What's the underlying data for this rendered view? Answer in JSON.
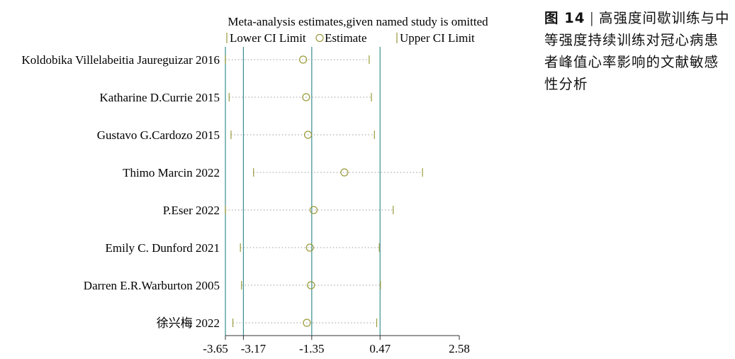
{
  "caption": {
    "figure_label": "图 14",
    "text": "高强度间歇训练与中等强度持续训练对冠心病患者峰值心率影响的文献敏感性分析"
  },
  "chart_data": {
    "type": "scatter",
    "title": "Meta-analysis estimates,given named study is omitted",
    "legend": {
      "lower": "Lower CI Limit",
      "estimate": "Estimate",
      "upper": "Upper CI Limit",
      "placement": "top"
    },
    "xlim": [
      -3.65,
      2.58
    ],
    "xticks": [
      -3.65,
      -3.17,
      -1.35,
      0.47,
      2.58
    ],
    "xtick_labels": [
      "-3.65",
      "-3.17",
      "-1.35",
      "0.47",
      "2.58"
    ],
    "reference_lines": [
      -3.17,
      -1.35,
      0.47
    ],
    "studies": [
      {
        "name": "Koldobika Villelabeitia Jaureguizar 2016",
        "lower": -3.65,
        "estimate": -1.58,
        "upper": 0.18
      },
      {
        "name": "Katharine D.Currie 2015",
        "lower": -3.55,
        "estimate": -1.5,
        "upper": 0.24
      },
      {
        "name": "Gustavo G.Cardozo 2015",
        "lower": -3.5,
        "estimate": -1.45,
        "upper": 0.32
      },
      {
        "name": "Thimo Marcin 2022",
        "lower": -2.9,
        "estimate": -0.48,
        "upper": 1.6
      },
      {
        "name": "P.Eser 2022",
        "lower": -3.65,
        "estimate": -1.3,
        "upper": 0.82
      },
      {
        "name": "Emily C. Dunford 2021",
        "lower": -3.25,
        "estimate": -1.4,
        "upper": 0.45
      },
      {
        "name": "Darren E.R.Warburton 2005",
        "lower": -3.22,
        "estimate": -1.37,
        "upper": 0.48
      },
      {
        "name": "徐兴梅 2022",
        "lower": -3.45,
        "estimate": -1.48,
        "upper": 0.38
      }
    ],
    "colors": {
      "marker": "#9a9a3a",
      "ref_line": "#3a8f8f",
      "dotted": "#9a9a9a",
      "axis": "#333333"
    }
  }
}
